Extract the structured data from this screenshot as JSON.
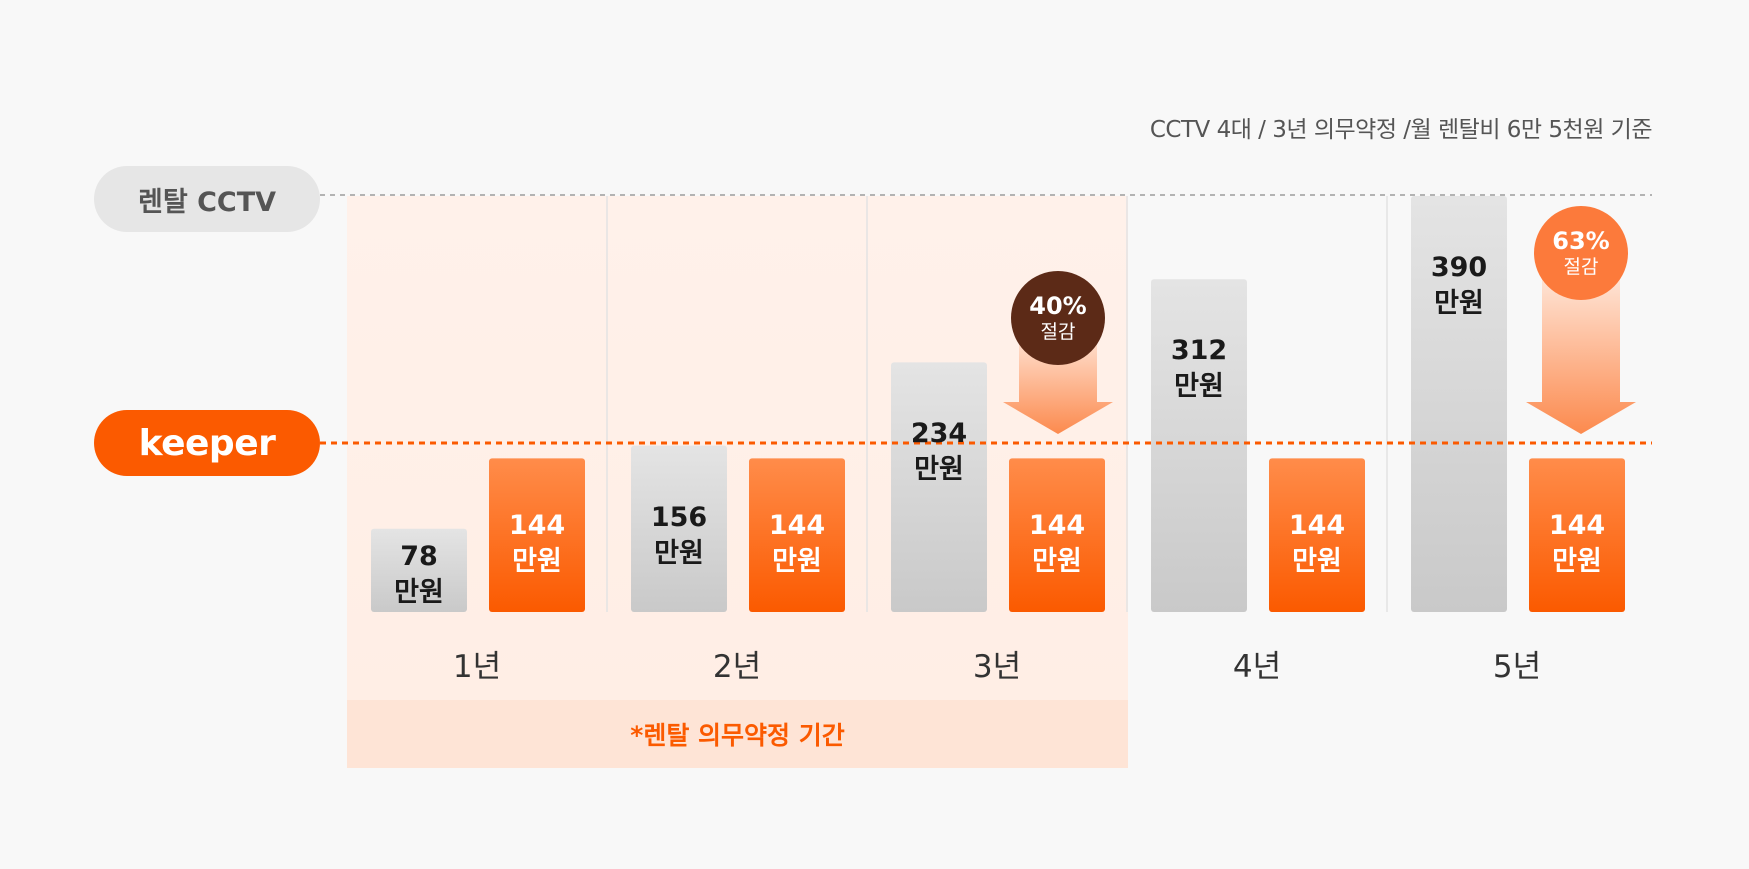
{
  "note": "CCTV 4대 / 3년 의무약정 /월 렌탈비 6만 5천원 기준",
  "legend": {
    "rental_label": "렌탈 CCTV",
    "keeper_label": "keeper"
  },
  "period_label": "*렌탈 의무약정 기간",
  "colors": {
    "rental_bar": "#cfcfcf",
    "keeper_bar": "#fb5a00",
    "badge_40": "#5c2a17",
    "badge_63": "#fc7a3b"
  },
  "badges": [
    {
      "percent": "40%",
      "text": "절감"
    },
    {
      "percent": "63%",
      "text": "절감"
    }
  ],
  "chart_data": {
    "type": "bar",
    "categories": [
      "1년",
      "2년",
      "3년",
      "4년",
      "5년"
    ],
    "series": [
      {
        "name": "렌탈 CCTV",
        "values": [
          78,
          156,
          234,
          312,
          390
        ],
        "labels": [
          "78\n만원",
          "156\n만원",
          "234\n만원",
          "312\n만원",
          "390\n만원"
        ]
      },
      {
        "name": "keeper",
        "values": [
          144,
          144,
          144,
          144,
          144
        ],
        "labels": [
          "144\n만원",
          "144\n만원",
          "144\n만원",
          "144\n만원",
          "144\n만원"
        ]
      }
    ],
    "unit": "만원",
    "ylim": [
      0,
      390
    ]
  }
}
